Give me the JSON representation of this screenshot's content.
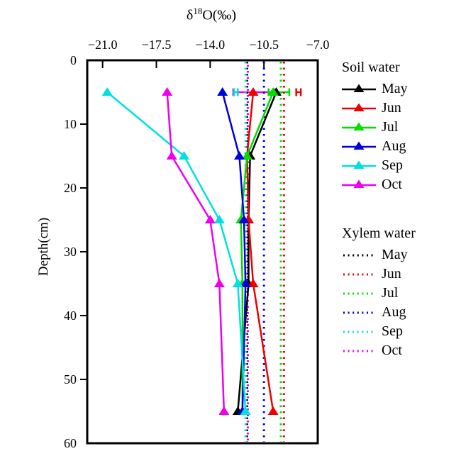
{
  "figure": {
    "x_axis_title": {
      "prefix": "δ",
      "superscript": "18",
      "suffix": "O(‰)"
    },
    "y_axis_label": "Depth(cm)"
  },
  "legend": {
    "soil_water_title": "Soil water",
    "xylem_water_title": "Xylem water",
    "months": [
      "May",
      "Jun",
      "Jul",
      "Aug",
      "Sep",
      "Oct"
    ]
  },
  "chart_data": {
    "type": "line",
    "xlabel": "δ18O(‰)",
    "ylabel": "Depth(cm)",
    "x_axis": {
      "min": -22.0,
      "max": -7.0,
      "position": "top",
      "ticks": [
        -21.0,
        -17.5,
        -14.0,
        -10.5,
        -7.0
      ],
      "tick_labels": [
        "−21.0",
        "−17.5",
        "−14.0",
        "−10.5",
        "−7.0"
      ]
    },
    "y_axis": {
      "min": 0,
      "max": 60,
      "direction": "depth increases downward",
      "ticks": [
        0,
        10,
        20,
        30,
        40,
        50,
        60
      ],
      "tick_labels": [
        "0",
        "10",
        "20",
        "30",
        "40",
        "50",
        "60"
      ]
    },
    "depths_cm": [
      5,
      15,
      25,
      35,
      55
    ],
    "soil_water_series": [
      {
        "name": "May",
        "color": "#000000",
        "d18O": [
          -9.7,
          -11.4,
          -11.5,
          -11.5,
          -12.2
        ]
      },
      {
        "name": "Jun",
        "color": "#EE0000",
        "d18O": [
          -11.2,
          -11.6,
          -11.5,
          -11.2,
          -9.9
        ]
      },
      {
        "name": "Jul",
        "color": "#00DD00",
        "d18O": [
          -9.9,
          -11.6,
          -12.0,
          -11.9,
          -11.9
        ]
      },
      {
        "name": "Aug",
        "color": "#0000DD",
        "d18O": [
          -13.2,
          -12.1,
          -11.8,
          -11.7,
          -11.9
        ]
      },
      {
        "name": "Sep",
        "color": "#00E0E0",
        "d18O": [
          -20.7,
          -15.7,
          -13.4,
          -12.2,
          -11.7
        ]
      },
      {
        "name": "Oct",
        "color": "#EE00EE",
        "d18O": [
          -16.8,
          -16.5,
          -14.0,
          -13.4,
          -13.1
        ]
      }
    ],
    "xylem_water_values": [
      {
        "name": "May",
        "color": "#000000",
        "d18O": -11.6,
        "dashoffset": 0
      },
      {
        "name": "Jun",
        "color": "#EE0000",
        "d18O": -9.2,
        "dashoffset": 0
      },
      {
        "name": "Jul",
        "color": "#00DD00",
        "d18O": -9.4,
        "dashoffset": 0
      },
      {
        "name": "Aug",
        "color": "#0000DD",
        "d18O": -10.5,
        "dashoffset": 0
      },
      {
        "name": "Sep",
        "color": "#00E0E0",
        "d18O": -11.7,
        "dashoffset": 0
      },
      {
        "name": "Oct",
        "color": "#EE00EE",
        "d18O": -11.55,
        "dashoffset": 4
      }
    ],
    "error_bars": [
      {
        "month": "Oct",
        "color": "#EE00EE",
        "depth_cm": 5,
        "from": -12.5,
        "to": -9.85
      },
      {
        "month": "Sep",
        "color": "#00E0E0",
        "depth_cm": 5,
        "from": -12.45,
        "to": -12.2
      },
      {
        "month": "Jul",
        "color": "#00DD00",
        "depth_cm": 5,
        "from": -10.2,
        "to": -8.85
      },
      {
        "month": "Jun",
        "color": "#EE0000",
        "depth_cm": 5,
        "from": -8.4,
        "to": -8.1
      }
    ]
  }
}
